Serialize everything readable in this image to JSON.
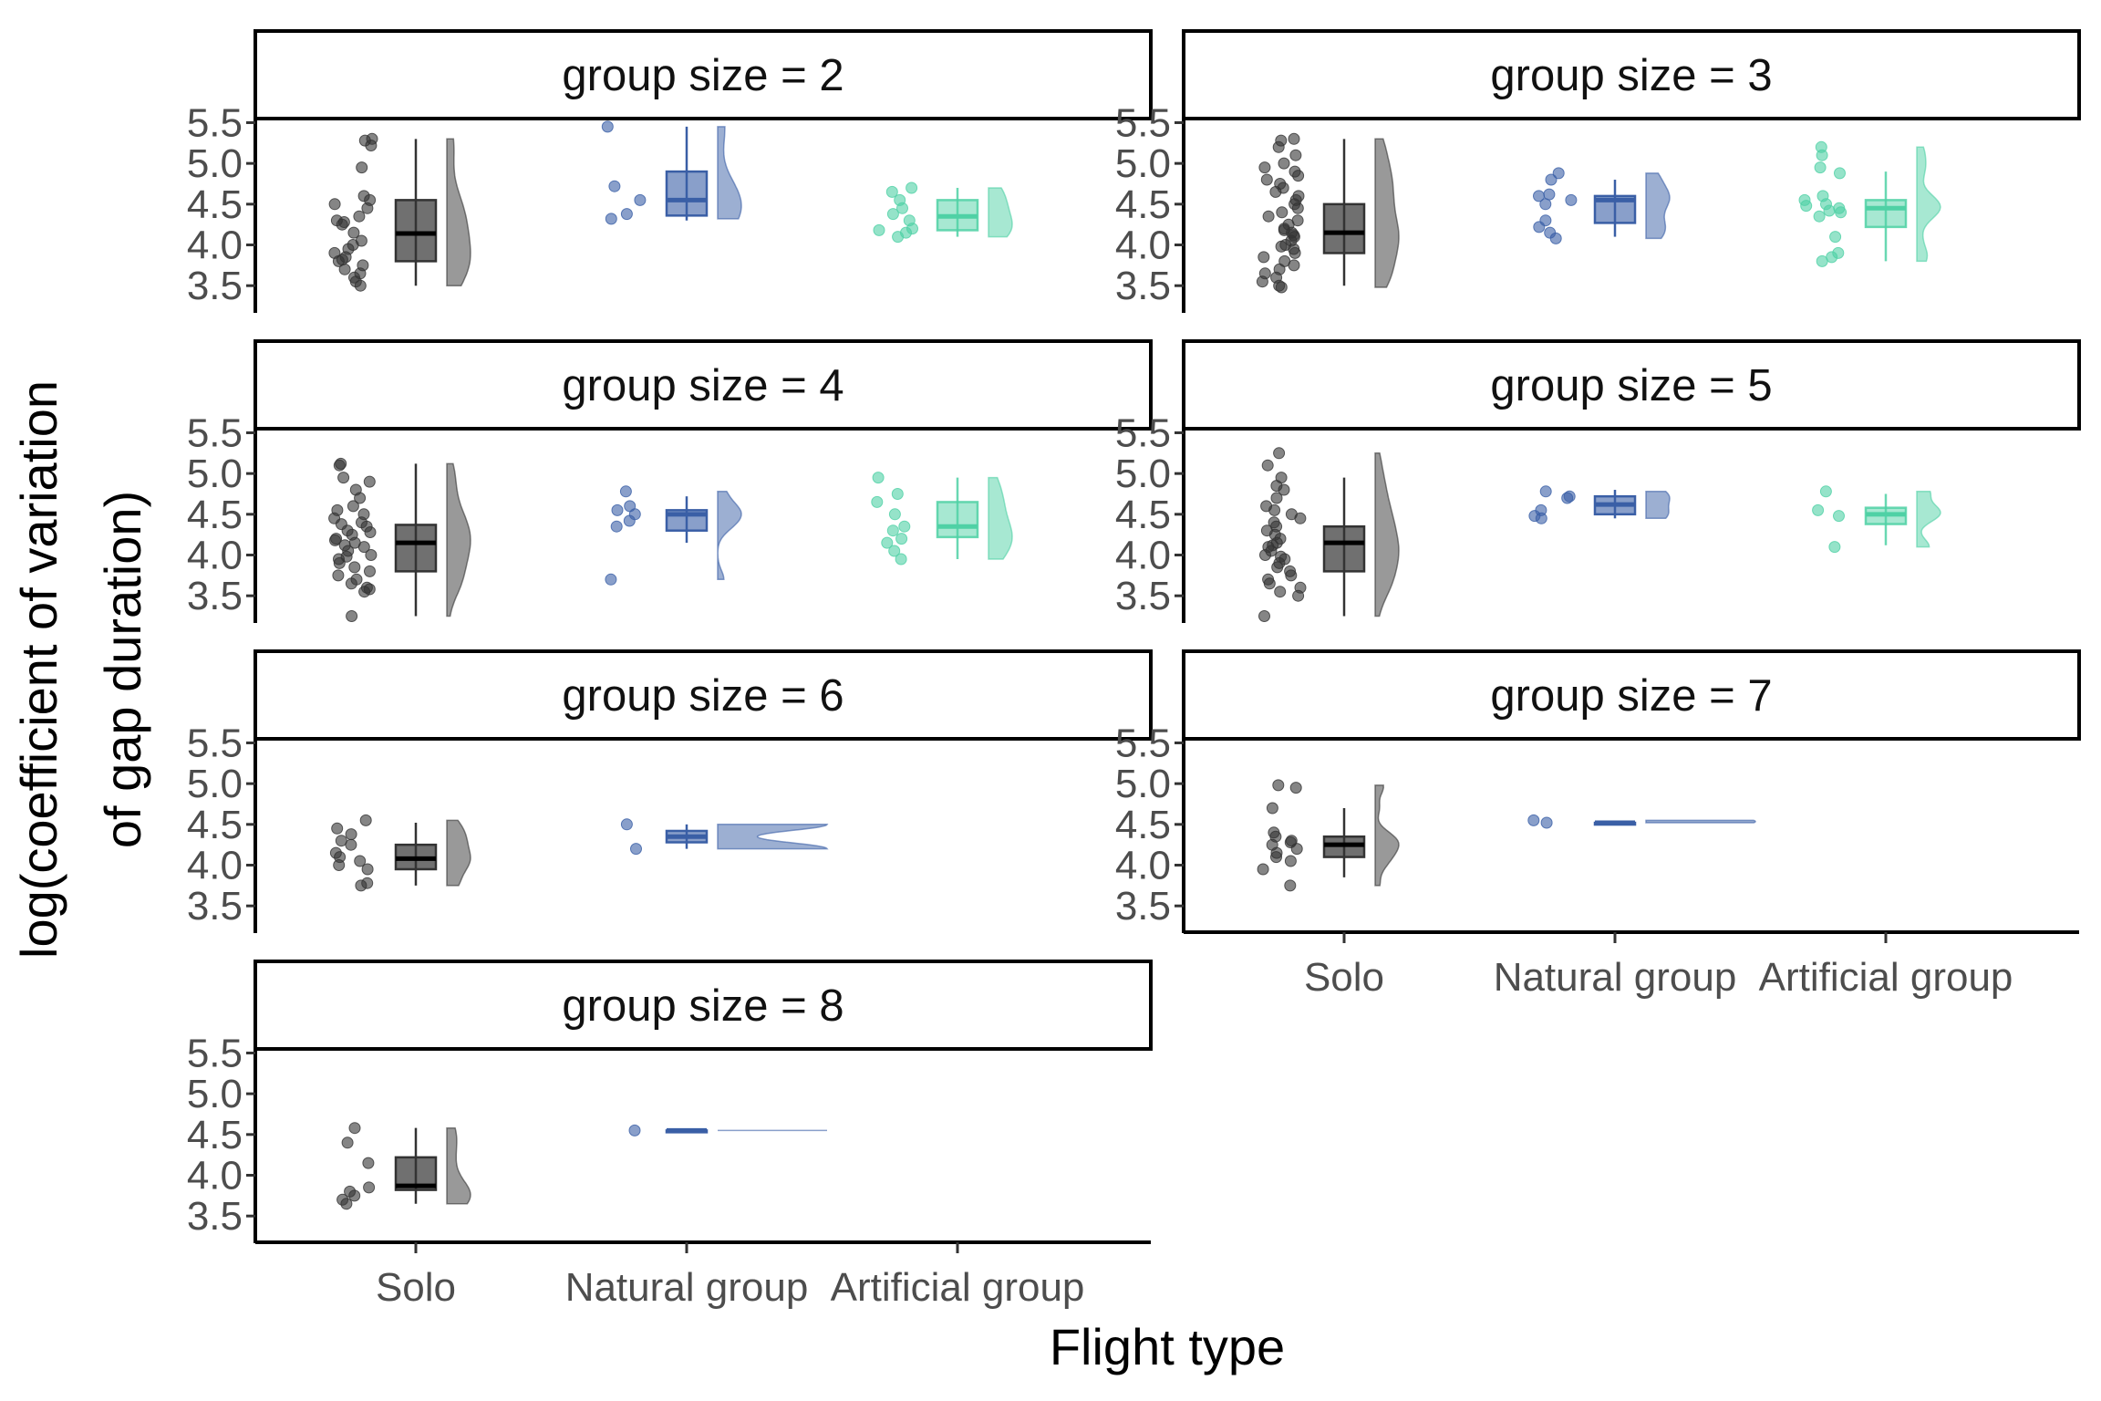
{
  "chart_data": {
    "type": "box",
    "title": "",
    "xlabel": "Flight type",
    "ylabel_lines": [
      "log(coefficient of variation",
      "of gap duration)"
    ],
    "categories": [
      "Solo",
      "Natural group",
      "Artificial group"
    ],
    "yticks": [
      "3.5",
      "4.0",
      "4.5",
      "5.0",
      "5.5"
    ],
    "ylim": [
      3.2,
      5.55
    ],
    "legend": "none",
    "grid": false,
    "colors": {
      "Solo": "#333333",
      "Natural group": "#3a5fa6",
      "Artificial group": "#4fd1a5"
    },
    "panels": [
      {
        "label": "group size =  2",
        "boxes": [
          {
            "category": "Solo",
            "q1": 3.8,
            "median": 4.14,
            "q3": 4.55,
            "lower": 3.5,
            "upper": 5.3,
            "points": [
              5.3,
              5.28,
              5.22,
              4.95,
              4.6,
              4.55,
              4.5,
              4.45,
              4.35,
              4.3,
              4.28,
              4.25,
              4.15,
              4.05,
              4.0,
              3.95,
              3.9,
              3.85,
              3.82,
              3.8,
              3.75,
              3.7,
              3.65,
              3.6,
              3.55,
              3.5
            ]
          },
          {
            "category": "Natural group",
            "q1": 4.36,
            "median": 4.55,
            "q3": 4.9,
            "lower": 4.3,
            "upper": 5.45,
            "points": [
              5.45,
              4.72,
              4.55,
              4.38,
              4.32
            ]
          },
          {
            "category": "Artificial group",
            "q1": 4.18,
            "median": 4.35,
            "q3": 4.55,
            "lower": 4.1,
            "upper": 4.7,
            "points": [
              4.7,
              4.65,
              4.55,
              4.45,
              4.38,
              4.3,
              4.2,
              4.18,
              4.15,
              4.1
            ]
          }
        ]
      },
      {
        "label": "group size =  3",
        "boxes": [
          {
            "category": "Solo",
            "q1": 3.9,
            "median": 4.15,
            "q3": 4.5,
            "lower": 3.5,
            "upper": 5.3,
            "points": [
              5.3,
              5.28,
              5.2,
              5.1,
              5.0,
              4.95,
              4.9,
              4.85,
              4.8,
              4.75,
              4.7,
              4.65,
              4.6,
              4.55,
              4.5,
              4.45,
              4.4,
              4.35,
              4.3,
              4.25,
              4.2,
              4.18,
              4.15,
              4.12,
              4.1,
              4.05,
              4.0,
              3.98,
              3.95,
              3.9,
              3.85,
              3.8,
              3.75,
              3.7,
              3.65,
              3.6,
              3.55,
              3.5,
              3.48
            ]
          },
          {
            "category": "Natural group",
            "q1": 4.27,
            "median": 4.55,
            "q3": 4.6,
            "lower": 4.1,
            "upper": 4.8,
            "points": [
              4.88,
              4.8,
              4.62,
              4.6,
              4.55,
              4.5,
              4.3,
              4.22,
              4.15,
              4.08
            ]
          },
          {
            "category": "Artificial group",
            "q1": 4.22,
            "median": 4.45,
            "q3": 4.55,
            "lower": 3.8,
            "upper": 4.9,
            "points": [
              5.2,
              5.1,
              4.95,
              4.88,
              4.6,
              4.55,
              4.5,
              4.48,
              4.45,
              4.42,
              4.4,
              4.35,
              4.1,
              3.9,
              3.85,
              3.8
            ]
          }
        ]
      },
      {
        "label": "group size =  4",
        "boxes": [
          {
            "category": "Solo",
            "q1": 3.8,
            "median": 4.15,
            "q3": 4.37,
            "lower": 3.25,
            "upper": 5.12,
            "points": [
              5.12,
              5.1,
              4.95,
              4.9,
              4.8,
              4.7,
              4.6,
              4.55,
              4.5,
              4.45,
              4.4,
              4.38,
              4.35,
              4.3,
              4.28,
              4.25,
              4.2,
              4.18,
              4.15,
              4.12,
              4.1,
              4.05,
              4.0,
              3.98,
              3.95,
              3.9,
              3.85,
              3.8,
              3.75,
              3.7,
              3.65,
              3.6,
              3.58,
              3.55,
              3.25
            ]
          },
          {
            "category": "Natural group",
            "q1": 4.3,
            "median": 4.5,
            "q3": 4.55,
            "lower": 4.15,
            "upper": 4.72,
            "points": [
              4.78,
              4.6,
              4.55,
              4.5,
              4.42,
              4.35,
              3.7
            ]
          },
          {
            "category": "Artificial group",
            "q1": 4.22,
            "median": 4.35,
            "q3": 4.65,
            "lower": 3.95,
            "upper": 4.95,
            "points": [
              4.95,
              4.75,
              4.65,
              4.5,
              4.35,
              4.3,
              4.2,
              4.15,
              4.05,
              3.95
            ]
          }
        ]
      },
      {
        "label": "group size =  5",
        "boxes": [
          {
            "category": "Solo",
            "q1": 3.8,
            "median": 4.15,
            "q3": 4.35,
            "lower": 3.25,
            "upper": 4.95,
            "points": [
              5.25,
              5.1,
              4.95,
              4.85,
              4.8,
              4.7,
              4.6,
              4.55,
              4.5,
              4.45,
              4.4,
              4.35,
              4.3,
              4.25,
              4.2,
              4.15,
              4.12,
              4.1,
              4.05,
              4.0,
              3.98,
              3.95,
              3.9,
              3.85,
              3.8,
              3.75,
              3.7,
              3.65,
              3.6,
              3.55,
              3.5,
              3.25
            ]
          },
          {
            "category": "Natural group",
            "q1": 4.5,
            "median": 4.62,
            "q3": 4.72,
            "lower": 4.45,
            "upper": 4.8,
            "points": [
              4.78,
              4.72,
              4.7,
              4.55,
              4.48,
              4.45
            ]
          },
          {
            "category": "Artificial group",
            "q1": 4.38,
            "median": 4.5,
            "q3": 4.58,
            "lower": 4.12,
            "upper": 4.75,
            "points": [
              4.78,
              4.55,
              4.48,
              4.1
            ]
          }
        ]
      },
      {
        "label": "group size =  6",
        "boxes": [
          {
            "category": "Solo",
            "q1": 3.95,
            "median": 4.08,
            "q3": 4.25,
            "lower": 3.75,
            "upper": 4.52,
            "points": [
              4.55,
              4.45,
              4.38,
              4.3,
              4.25,
              4.15,
              4.1,
              4.05,
              4.0,
              3.95,
              3.78,
              3.75
            ]
          },
          {
            "category": "Natural group",
            "q1": 4.28,
            "median": 4.35,
            "q3": 4.42,
            "lower": 4.2,
            "upper": 4.5,
            "points": [
              4.5,
              4.2
            ]
          }
        ]
      },
      {
        "label": "group size =  7",
        "boxes": [
          {
            "category": "Solo",
            "q1": 4.1,
            "median": 4.25,
            "q3": 4.35,
            "lower": 3.85,
            "upper": 4.7,
            "points": [
              4.98,
              4.95,
              4.7,
              4.4,
              4.35,
              4.3,
              4.28,
              4.25,
              4.2,
              4.15,
              4.1,
              4.05,
              3.95,
              3.75
            ]
          },
          {
            "category": "Natural group",
            "q1": 4.52,
            "median": 4.52,
            "q3": 4.52,
            "lower": 4.52,
            "upper": 4.52,
            "points": [
              4.55,
              4.52
            ]
          }
        ]
      },
      {
        "label": "group size =  8",
        "boxes": [
          {
            "category": "Solo",
            "q1": 3.82,
            "median": 3.87,
            "q3": 4.22,
            "lower": 3.65,
            "upper": 4.58,
            "points": [
              4.58,
              4.4,
              4.15,
              3.85,
              3.8,
              3.75,
              3.7,
              3.65
            ]
          },
          {
            "category": "Natural group",
            "q1": 4.55,
            "median": 4.55,
            "q3": 4.55,
            "lower": 4.55,
            "upper": 4.55,
            "points": [
              4.55
            ]
          }
        ]
      }
    ]
  }
}
